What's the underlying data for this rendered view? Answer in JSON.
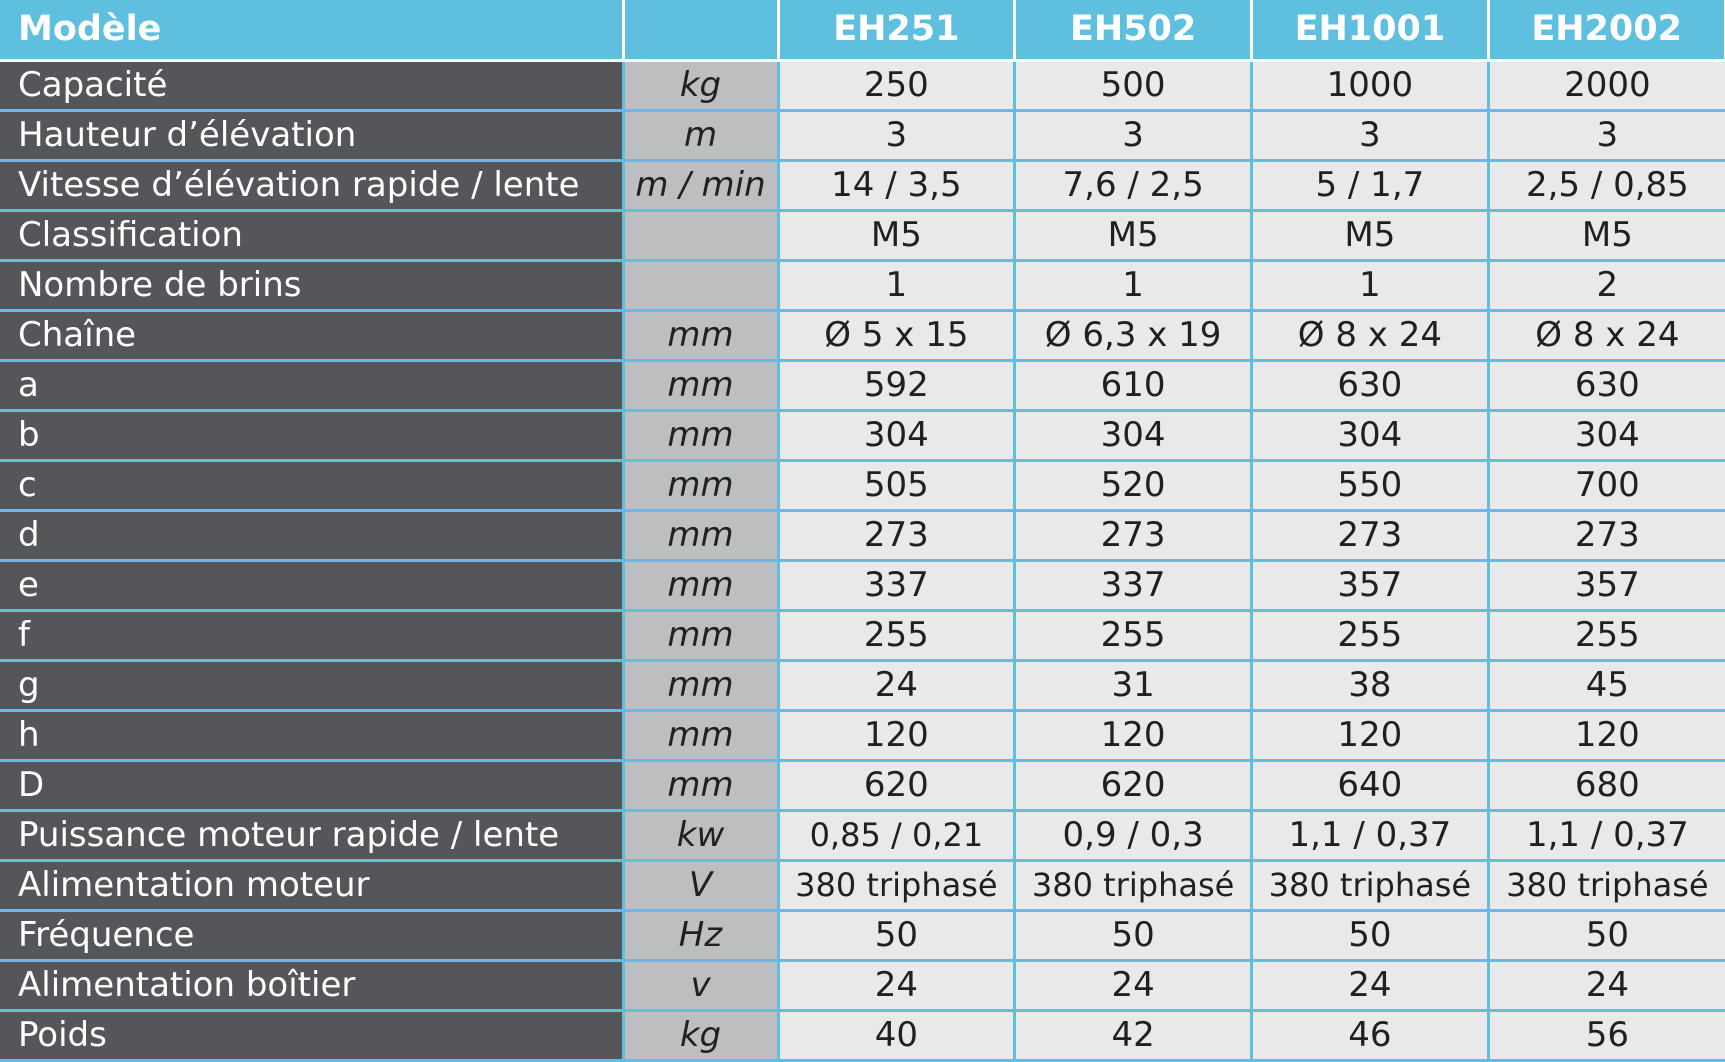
{
  "header": {
    "label": "Modèle",
    "unit": "",
    "models": [
      "EH251",
      "EH502",
      "EH1001",
      "EH2002"
    ]
  },
  "rows": [
    {
      "label": "Capacité",
      "unit": "kg",
      "values": [
        "250",
        "500",
        "1000",
        "2000"
      ]
    },
    {
      "label": "Hauteur d’élévation",
      "unit": "m",
      "values": [
        "3",
        "3",
        "3",
        "3"
      ]
    },
    {
      "label": "Vitesse d’élévation rapide / lente",
      "unit": "m / min",
      "values": [
        "14 / 3,5",
        "7,6 / 2,5",
        "5 / 1,7",
        "2,5 / 0,85"
      ]
    },
    {
      "label": "Classification",
      "unit": "",
      "values": [
        "M5",
        "M5",
        "M5",
        "M5"
      ]
    },
    {
      "label": "Nombre de brins",
      "unit": "",
      "values": [
        "1",
        "1",
        "1",
        "2"
      ]
    },
    {
      "label": "Chaîne",
      "unit": "mm",
      "values": [
        "Ø 5 x 15",
        "Ø 6,3 x 19",
        "Ø 8 x 24",
        "Ø 8 x 24"
      ]
    },
    {
      "label": "a",
      "unit": "mm",
      "values": [
        "592",
        "610",
        "630",
        "630"
      ]
    },
    {
      "label": "b",
      "unit": "mm",
      "values": [
        "304",
        "304",
        "304",
        "304"
      ]
    },
    {
      "label": "c",
      "unit": "mm",
      "values": [
        "505",
        "520",
        "550",
        "700"
      ]
    },
    {
      "label": "d",
      "unit": "mm",
      "values": [
        "273",
        "273",
        "273",
        "273"
      ]
    },
    {
      "label": "e",
      "unit": "mm",
      "values": [
        "337",
        "337",
        "357",
        "357"
      ]
    },
    {
      "label": "f",
      "unit": "mm",
      "values": [
        "255",
        "255",
        "255",
        "255"
      ]
    },
    {
      "label": "g",
      "unit": "mm",
      "values": [
        "24",
        "31",
        "38",
        "45"
      ]
    },
    {
      "label": "h",
      "unit": "mm",
      "values": [
        "120",
        "120",
        "120",
        "120"
      ]
    },
    {
      "label": "D",
      "unit": "mm",
      "values": [
        "620",
        "620",
        "640",
        "680"
      ]
    },
    {
      "label": "Puissance moteur rapide / lente",
      "unit": "kw",
      "values": [
        "0,85 / 0,21",
        "0,9 / 0,3",
        "1,1 / 0,37",
        "1,1 / 0,37"
      ]
    },
    {
      "label": "Alimentation moteur",
      "unit": "V",
      "values": [
        "380 triphasé",
        "380 triphasé",
        "380 triphasé",
        "380 triphasé"
      ]
    },
    {
      "label": "Fréquence",
      "unit": "Hz",
      "values": [
        "50",
        "50",
        "50",
        "50"
      ]
    },
    {
      "label": "Alimentation boîtier",
      "unit": "v",
      "values": [
        "24",
        "24",
        "24",
        "24"
      ]
    },
    {
      "label": "Poids",
      "unit": "kg",
      "values": [
        "40",
        "42",
        "46",
        "56"
      ]
    }
  ],
  "colors": {
    "header_bg": "#5ec0de",
    "label_bg": "#54565a",
    "unit_bg": "#bcbec0",
    "value_bg": "#e9e9ea",
    "grid_line": "#5ec0de"
  }
}
